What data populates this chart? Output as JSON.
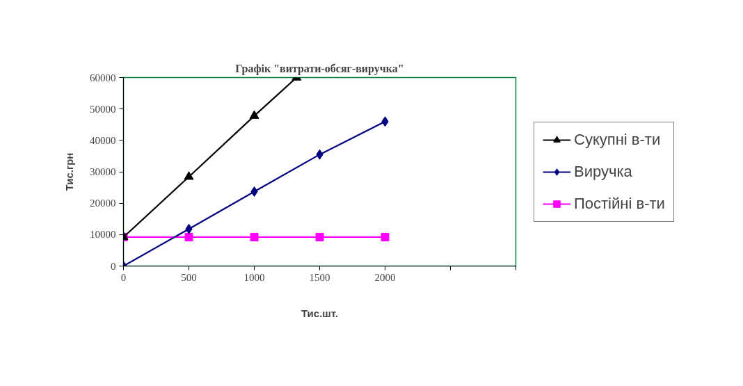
{
  "chart_data": {
    "type": "line",
    "title": "Графік \"витрати-обсяг-виручка\"",
    "xlabel": "Тис.шт.",
    "ylabel": "Тис.грн",
    "x": [
      0,
      500,
      1000,
      1500,
      2000
    ],
    "xlim": [
      0,
      3000
    ],
    "xticks": [
      0,
      500,
      1000,
      1500,
      2000,
      {
        "value": 2500,
        "label": null
      },
      {
        "value": 3000,
        "label": null
      }
    ],
    "ylim": [
      0,
      60000
    ],
    "yticks": [
      0,
      10000,
      20000,
      30000,
      40000,
      50000,
      60000
    ],
    "grid": false,
    "legend": "right",
    "line_style": "solid",
    "series": [
      {
        "name": "Сукупні в-ти",
        "color": "#000000",
        "marker": "triangle",
        "x": [
          0,
          500,
          1000,
          1323
        ],
        "values": [
          9200,
          28400,
          47800,
          60000
        ]
      },
      {
        "name": "Виручка",
        "color": "#000080",
        "marker": "diamond",
        "values": [
          0,
          11800,
          23700,
          35500,
          46000
        ]
      },
      {
        "name": "Постійні в-ти",
        "color": "#ff00ff",
        "marker": "square",
        "values": [
          9200,
          9200,
          9200,
          9200,
          9200
        ]
      }
    ]
  }
}
